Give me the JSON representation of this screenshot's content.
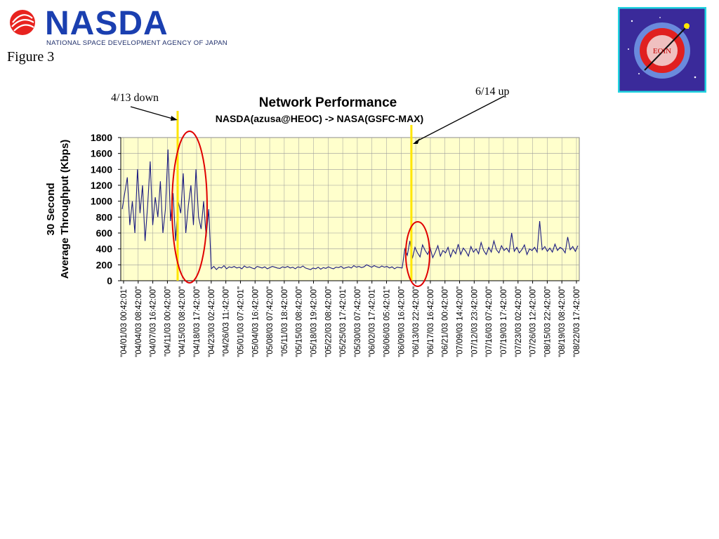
{
  "header": {
    "logo_text": "NASDA",
    "agency_name": "NATIONAL SPACE DEVELOPMENT AGENCY OF JAPAN",
    "figure_label": "Figure 3",
    "badge_text": "EOIN"
  },
  "colors": {
    "plot_bg": "#ffffcc",
    "series": "#1a1a80",
    "marker_line": "#ffe600",
    "ellipse": "#e00000",
    "logo_blue": "#1a3fb0"
  },
  "chart_data": {
    "type": "line",
    "title": "Network Performance",
    "subtitle": "NASDA(azusa@HEOC) -> NASA(GSFC-MAX)",
    "ylabel_lines": [
      "30 Second",
      "Average Throughput (Kbps)"
    ],
    "xlabel": "",
    "ylim": [
      0,
      1800
    ],
    "yticks": [
      0,
      200,
      400,
      600,
      800,
      1000,
      1200,
      1400,
      1600,
      1800
    ],
    "grid": true,
    "x_tick_labels": [
      "\"04/01/03 00:42:01\"",
      "\"04/04/03 08:42:00\"",
      "\"04/07/03 16:42:00\"",
      "\"04/11/03 00:42:00\"",
      "\"04/15/03 08:42:00\"",
      "\"04/18/03 17:42:00\"",
      "\"04/23/03 02:42:00\"",
      "\"04/26/03 11:42:00\"",
      "\"05/01/03 07:42:01\"",
      "\"05/04/03 16:42:00\"",
      "\"05/08/03 07:42:00\"",
      "\"05/11/03 18:42:00\"",
      "\"05/15/03 08:42:00\"",
      "\"05/18/03 19:42:00\"",
      "\"05/22/03 08:42:00\"",
      "\"05/25/03 17:42:01\"",
      "\"05/30/03 07:42:00\"",
      "\"06/02/03 17:42:01\"",
      "\"06/06/03 05:42:01\"",
      "\"06/09/03 16:42:00\"",
      "\"06/13/03 22:42:00\"",
      "\"06/17/03 16:42:00\"",
      "\"06/21/03 00:42:00\"",
      "\"07/09/03 14:42:00\"",
      "\"07/12/03 23:42:00\"",
      "\"07/16/03 07:42:00\"",
      "\"07/19/03 17:42:00\"",
      "\"07/23/03 02:42:00\"",
      "\"07/26/03 12:42:00\"",
      "\"08/15/03 22:42:00\"",
      "\"08/19/03 08:42:00\"",
      "\"08/22/03 17:42:00\""
    ],
    "series": [
      {
        "values": [
          900,
          1100,
          1300,
          700,
          1000,
          600,
          1400,
          850,
          1200,
          500,
          950,
          1500,
          700,
          1050,
          800,
          1250,
          600,
          900,
          1650,
          750,
          1100,
          500,
          1000,
          850,
          1350,
          600,
          950,
          1200,
          700,
          1400,
          800,
          650,
          1000,
          550,
          900,
          150,
          180,
          140,
          170,
          160,
          190,
          150,
          175,
          165,
          180,
          160,
          170,
          150,
          185,
          165,
          175,
          160,
          150,
          180,
          170,
          160,
          175,
          150,
          165,
          180,
          170,
          160,
          155,
          175,
          165,
          180,
          160,
          170,
          150,
          175,
          165,
          185,
          160,
          150,
          140,
          160,
          150,
          170,
          145,
          165,
          155,
          175,
          160,
          150,
          170,
          165,
          180,
          155,
          165,
          175,
          160,
          190,
          170,
          180,
          165,
          175,
          200,
          185,
          170,
          190,
          175,
          165,
          185,
          170,
          180,
          160,
          175,
          150,
          170,
          165,
          160,
          400,
          320,
          500,
          280,
          420,
          350,
          300,
          450,
          380,
          330,
          410,
          290,
          360,
          440,
          310,
          380,
          350,
          420,
          300,
          390,
          340,
          460,
          330,
          410,
          370,
          310,
          430,
          360,
          400,
          340,
          480,
          380,
          330,
          420,
          360,
          500,
          390,
          350,
          440,
          380,
          410,
          360,
          600,
          370,
          420,
          350,
          390,
          450,
          330,
          400,
          380,
          420,
          360,
          750,
          390,
          430,
          370,
          410,
          360,
          460,
          380,
          420,
          400,
          350,
          550,
          390,
          430,
          370,
          440
        ]
      }
    ],
    "annotations": [
      {
        "label": "4/13  down",
        "x_index": 3.7
      },
      {
        "label": "6/14  up",
        "x_index": 19.7
      }
    ]
  }
}
